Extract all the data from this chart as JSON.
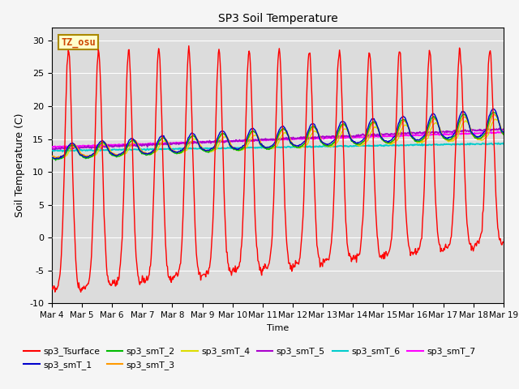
{
  "title": "SP3 Soil Temperature",
  "ylabel": "Soil Temperature (C)",
  "xlabel": "Time",
  "ylim": [
    -10,
    32
  ],
  "background_color": "#dcdcdc",
  "annotation_text": "TZ_osu",
  "annotation_color": "#cc4400",
  "annotation_bg": "#ffffcc",
  "annotation_edge": "#aa8800",
  "series_colors": {
    "sp3_Tsurface": "#ff0000",
    "sp3_smT_1": "#0000cc",
    "sp3_smT_2": "#00bb00",
    "sp3_smT_3": "#ff9900",
    "sp3_smT_4": "#dddd00",
    "sp3_smT_5": "#aa00cc",
    "sp3_smT_6": "#00cccc",
    "sp3_smT_7": "#ff00ff"
  },
  "xtick_labels": [
    "Mar 4",
    "Mar 5",
    "Mar 6",
    "Mar 7",
    "Mar 8",
    "Mar 9",
    "Mar 10",
    "Mar 11",
    "Mar 12",
    "Mar 13",
    "Mar 14",
    "Mar 15",
    "Mar 16",
    "Mar 17",
    "Mar 18",
    "Mar 19"
  ],
  "ytick_labels": [
    -10,
    -5,
    0,
    5,
    10,
    15,
    20,
    25,
    30
  ],
  "n_days": 15,
  "pts_per_day": 48
}
